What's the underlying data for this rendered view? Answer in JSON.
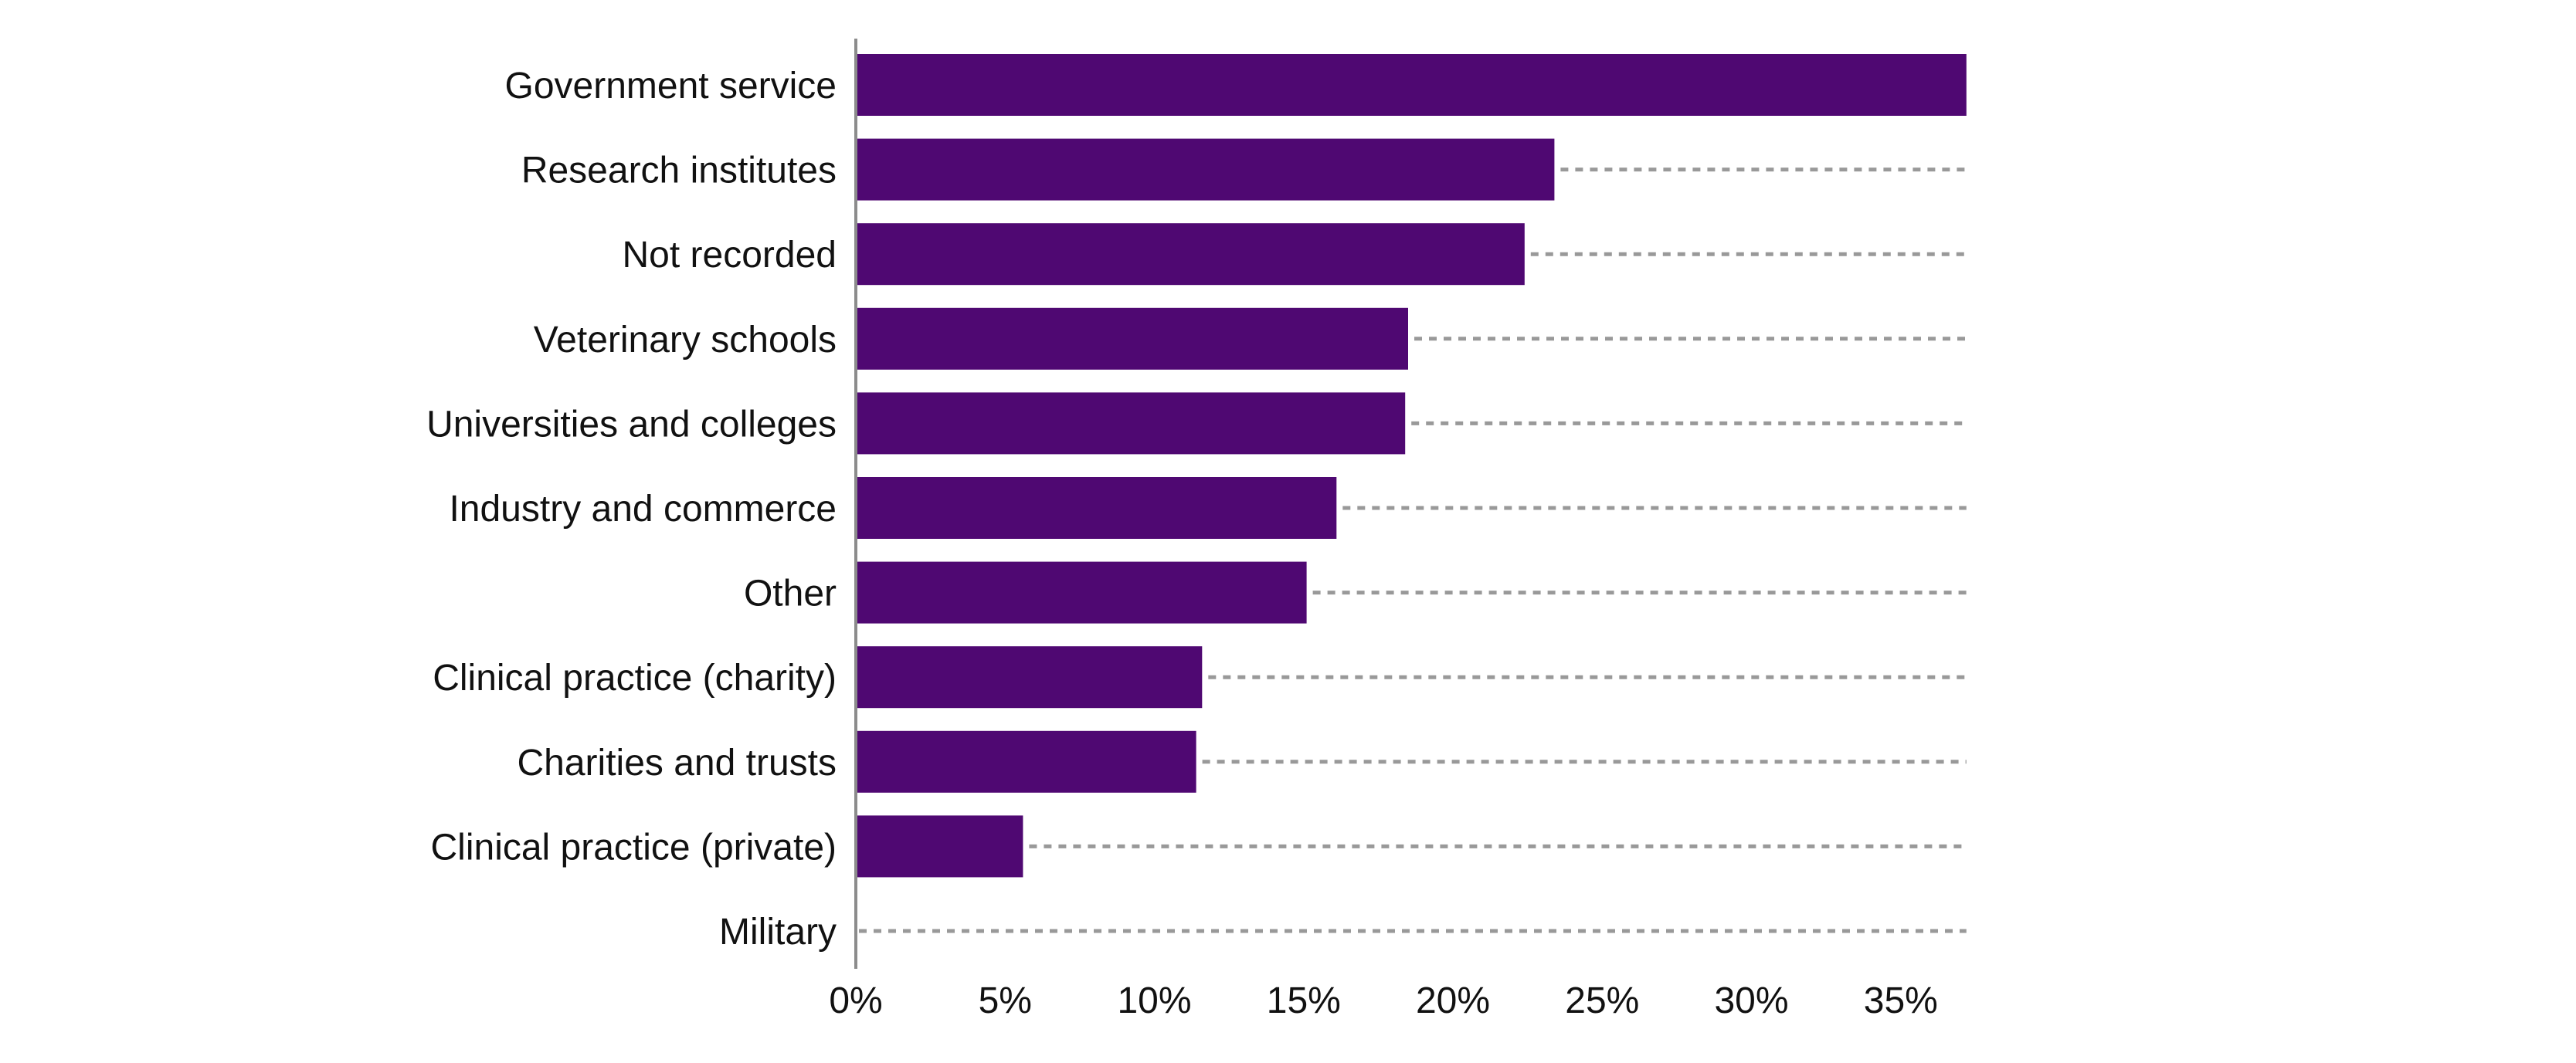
{
  "chart_data": {
    "type": "bar",
    "orientation": "horizontal",
    "categories": [
      "Government service",
      "Research institutes",
      "Not recorded",
      "Veterinary schools",
      "Universities and colleges",
      "Industry and commerce",
      "Other",
      "Clinical practice (charity)",
      "Charities and trusts",
      "Clinical practice (private)",
      "Military"
    ],
    "values": [
      37.2,
      23.4,
      22.4,
      18.5,
      18.4,
      16.1,
      15.1,
      11.6,
      11.4,
      5.6,
      0.0
    ],
    "unit": "%",
    "xlim": [
      0,
      37.2
    ],
    "xticks": [
      "0%",
      "5%",
      "10%",
      "15%",
      "20%",
      "25%",
      "30%",
      "35%"
    ],
    "xtick_values": [
      0,
      5,
      10,
      15,
      20,
      25,
      30,
      35
    ],
    "title": "",
    "xlabel": "",
    "ylabel": "",
    "grid": false,
    "legend": "none",
    "remainder_style": "dashed line to the maximum value",
    "colors": {
      "bar": "#4f0872",
      "axis": "#8c8c8c",
      "dashed_line": "#999999",
      "text": "#111111"
    }
  }
}
